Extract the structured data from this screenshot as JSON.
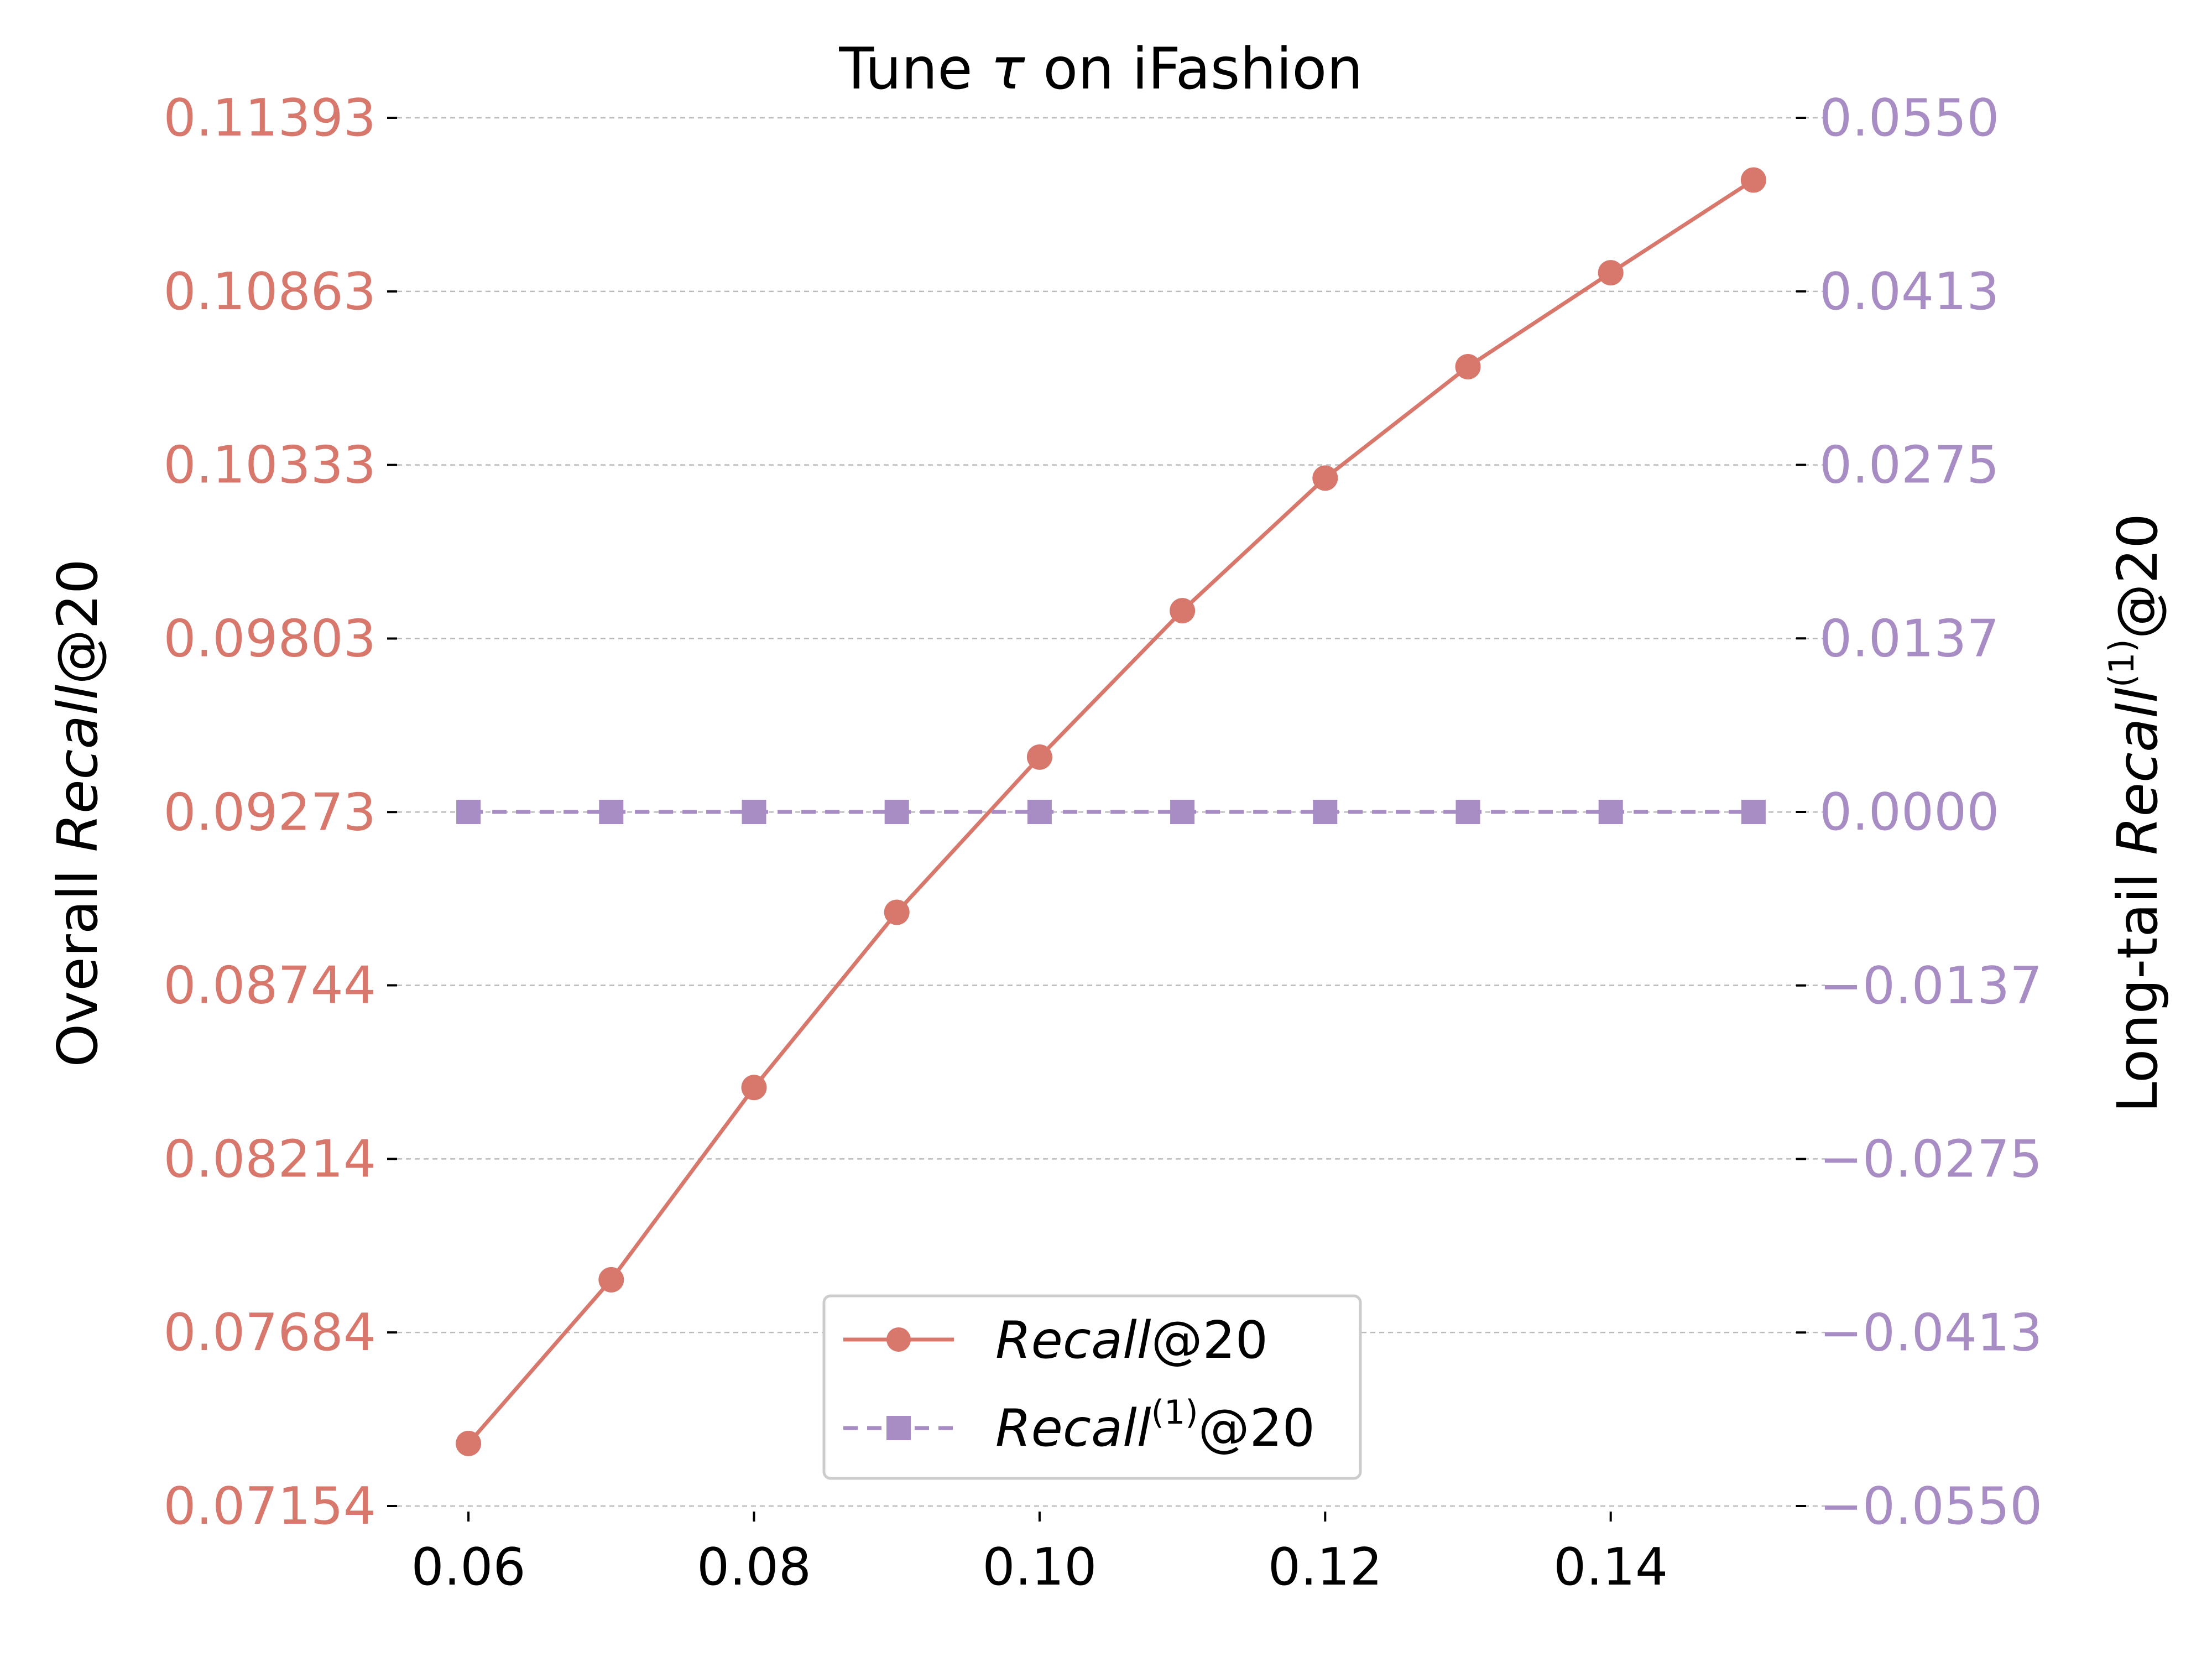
{
  "chart_data": {
    "type": "line",
    "title_prefix": "Tune ",
    "title_symbol": "τ",
    "title_suffix": " on iFashion",
    "x": [
      0.06,
      0.07,
      0.08,
      0.09,
      0.1,
      0.11,
      0.12,
      0.13,
      0.14,
      0.15
    ],
    "x_ticks": [
      "0.06",
      "0.08",
      "0.10",
      "0.12",
      "0.14"
    ],
    "x_tick_values": [
      0.06,
      0.08,
      0.1,
      0.12,
      0.14
    ],
    "xlim": [
      0.055,
      0.155
    ],
    "ylabel_left": {
      "prefix": "Overall  ",
      "italic": "Recall",
      "suffix": "@20"
    },
    "ylabel_right": {
      "prefix": "Long-tail  ",
      "italic": "Recall",
      "sup": "(1)",
      "suffix": "@20"
    },
    "ylim_left": [
      0.07154,
      0.11393
    ],
    "ylim_right": [
      -0.055,
      0.055
    ],
    "y_ticks_left": [
      "0.07154",
      "0.07684",
      "0.08214",
      "0.08744",
      "0.09273",
      "0.09803",
      "0.10333",
      "0.10863",
      "0.11393"
    ],
    "y_tick_values_left": [
      0.07154,
      0.07684,
      0.08214,
      0.08744,
      0.09273,
      0.09803,
      0.10333,
      0.10863,
      0.11393
    ],
    "y_ticks_right": [
      "−0.0550",
      "−0.0413",
      "−0.0275",
      "−0.0137",
      "0.0000",
      "0.0137",
      "0.0275",
      "0.0413",
      "0.0550"
    ],
    "y_tick_values_right": [
      -0.055,
      -0.04125,
      -0.0275,
      -0.01375,
      0.0,
      0.01375,
      0.0275,
      0.04125,
      0.055
    ],
    "grid": "horizontal dashed",
    "legend_position": "bottom-center",
    "series": [
      {
        "name": "Recall@20",
        "legend_italic": "Recall",
        "legend_sup": "",
        "legend_suffix": "@20",
        "axis": "left",
        "marker": "circle",
        "line_style": "solid",
        "color": "#d8786c",
        "values": [
          0.07345,
          0.07845,
          0.08432,
          0.08967,
          0.09441,
          0.09888,
          0.10293,
          0.10633,
          0.1092,
          0.11203
        ]
      },
      {
        "name": "Recall(1)@20",
        "legend_italic": "Recall",
        "legend_sup": "(1)",
        "legend_suffix": "@20",
        "axis": "right",
        "marker": "square",
        "line_style": "dashed",
        "color": "#a88cc4",
        "values": [
          0.0,
          0.0,
          0.0,
          0.0,
          0.0,
          0.0,
          0.0,
          0.0,
          0.0,
          0.0
        ]
      }
    ],
    "colors": {
      "left_axis": "#d8786c",
      "right_axis": "#a88cc4",
      "grid": "#bbbbbb"
    }
  }
}
